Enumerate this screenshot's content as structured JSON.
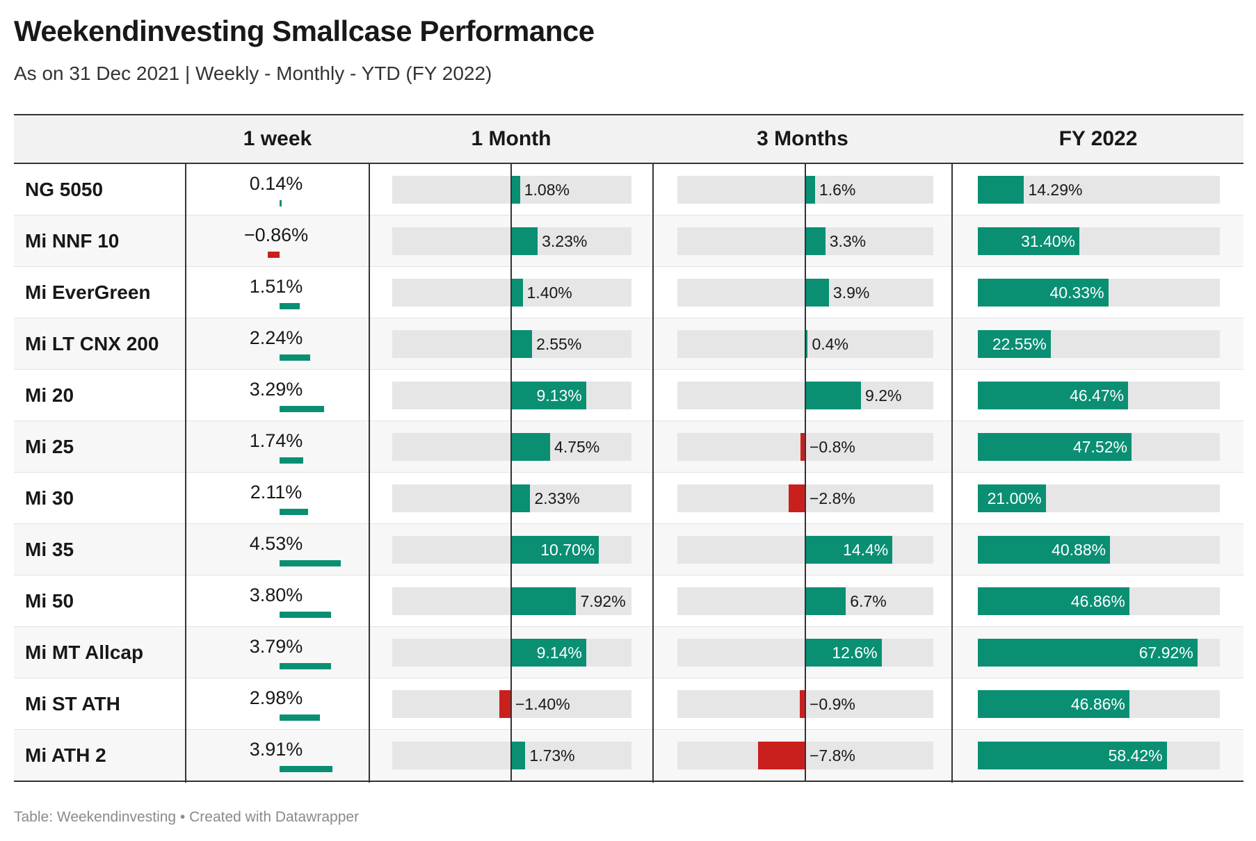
{
  "title": "Weekendinvesting Smallcase Performance",
  "subtitle": "As on 31 Dec 2021 | Weekly - Monthly - YTD (FY 2022)",
  "footer": "Table: Weekendinvesting • Created with Datawrapper",
  "colors": {
    "positive": "#0a8f73",
    "negative": "#c9201e",
    "track": "#e6e6e6",
    "rule": "#333333"
  },
  "chart_data": {
    "type": "table",
    "columns": [
      "",
      "1 week",
      "1 Month",
      "3 Months",
      "FY 2022"
    ],
    "rows": [
      {
        "name": "NG 5050",
        "week": 0.14,
        "week_label": "0.14%",
        "month": 1.08,
        "month_label": "1.08%",
        "m3": 1.6,
        "m3_label": "1.6%",
        "fy": 14.29,
        "fy_label": "14.29%"
      },
      {
        "name": "Mi NNF 10",
        "week": -0.86,
        "week_label": "−0.86%",
        "month": 3.23,
        "month_label": "3.23%",
        "m3": 3.3,
        "m3_label": "3.3%",
        "fy": 31.4,
        "fy_label": "31.40%"
      },
      {
        "name": "Mi EverGreen",
        "week": 1.51,
        "week_label": "1.51%",
        "month": 1.4,
        "month_label": "1.40%",
        "m3": 3.9,
        "m3_label": "3.9%",
        "fy": 40.33,
        "fy_label": "40.33%"
      },
      {
        "name": "Mi LT CNX 200",
        "week": 2.24,
        "week_label": "2.24%",
        "month": 2.55,
        "month_label": "2.55%",
        "m3": 0.4,
        "m3_label": "0.4%",
        "fy": 22.55,
        "fy_label": "22.55%"
      },
      {
        "name": "Mi 20",
        "week": 3.29,
        "week_label": "3.29%",
        "month": 9.13,
        "month_label": "9.13%",
        "m3": 9.2,
        "m3_label": "9.2%",
        "fy": 46.47,
        "fy_label": "46.47%"
      },
      {
        "name": "Mi 25",
        "week": 1.74,
        "week_label": "1.74%",
        "month": 4.75,
        "month_label": "4.75%",
        "m3": -0.8,
        "m3_label": "−0.8%",
        "fy": 47.52,
        "fy_label": "47.52%"
      },
      {
        "name": "Mi 30",
        "week": 2.11,
        "week_label": "2.11%",
        "month": 2.33,
        "month_label": "2.33%",
        "m3": -2.8,
        "m3_label": "−2.8%",
        "fy": 21.0,
        "fy_label": "21.00%"
      },
      {
        "name": "Mi 35",
        "week": 4.53,
        "week_label": "4.53%",
        "month": 10.7,
        "month_label": "10.70%",
        "m3": 14.4,
        "m3_label": "14.4%",
        "fy": 40.88,
        "fy_label": "40.88%"
      },
      {
        "name": "Mi 50",
        "week": 3.8,
        "week_label": "3.80%",
        "month": 7.92,
        "month_label": "7.92%",
        "m3": 6.7,
        "m3_label": "6.7%",
        "fy": 46.86,
        "fy_label": "46.86%"
      },
      {
        "name": "Mi MT Allcap",
        "week": 3.79,
        "week_label": "3.79%",
        "month": 9.14,
        "month_label": "9.14%",
        "m3": 12.6,
        "m3_label": "12.6%",
        "fy": 67.92,
        "fy_label": "67.92%"
      },
      {
        "name": "Mi ST ATH",
        "week": 2.98,
        "week_label": "2.98%",
        "month": -1.4,
        "month_label": "−1.40%",
        "m3": -0.9,
        "m3_label": "−0.9%",
        "fy": 46.86,
        "fy_label": "46.86%"
      },
      {
        "name": "Mi ATH 2",
        "week": 3.91,
        "week_label": "3.91%",
        "month": 1.73,
        "month_label": "1.73%",
        "m3": -7.8,
        "m3_label": "−7.8%",
        "fy": 58.42,
        "fy_label": "58.42%"
      }
    ]
  }
}
